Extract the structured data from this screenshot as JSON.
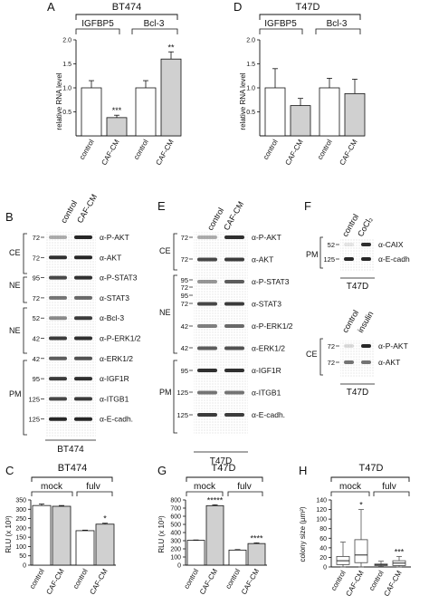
{
  "colors": {
    "gray_bar": "#d0d0d0",
    "white_bar": "#ffffff",
    "blot_band": "#1a1a1a",
    "blot_bg": "#e6e6e6",
    "axis": "#111111"
  },
  "panels": {
    "A": {
      "letter": "A",
      "cell_line": "BT474",
      "group_labels": [
        "IGFBP5",
        "Bcl-3"
      ],
      "ylabel": "relative RNA level",
      "xticks": [
        "control",
        "CAF-CM",
        "control",
        "CAF-CM"
      ],
      "annotations": [
        "***",
        "**"
      ]
    },
    "D": {
      "letter": "D",
      "cell_line": "T47D",
      "group_labels": [
        "IGFBP5",
        "Bcl-3"
      ],
      "ylabel": "relative RNA level",
      "xticks": [
        "control",
        "CAF-CM",
        "control",
        "CAF-CM"
      ]
    },
    "B": {
      "letter": "B",
      "cell_line": "BT474",
      "lane_labels": [
        "control",
        "CAF-CM"
      ],
      "fractions": [
        "CE",
        "NE",
        "NE",
        "PM"
      ],
      "mw": [
        "72",
        "72",
        "95",
        "72",
        "52",
        "42",
        "42",
        "95",
        "125",
        "125"
      ],
      "antibodies": [
        "α-P-AKT",
        "α-AKT",
        "α-P-STAT3",
        "α-STAT3",
        "α-Bcl-3",
        "α-P-ERK1/2",
        "α-ERK1/2",
        "α-IGF1R",
        "α-ITGB1",
        "α-E-cadh."
      ]
    },
    "E": {
      "letter": "E",
      "cell_line": "T47D",
      "lane_labels": [
        "control",
        "CAF-CM"
      ],
      "fractions": [
        "CE",
        "NE",
        "PM"
      ],
      "mw": [
        "72",
        "72",
        "95",
        "72",
        "95",
        "72",
        "42",
        "42",
        "95",
        "125",
        "125"
      ],
      "antibodies": [
        "α-P-AKT",
        "α-AKT",
        "α-P-STAT3",
        "α-STAT3",
        "α-P-ERK1/2",
        "α-ERK1/2",
        "α-IGF1R",
        "α-ITGB1",
        "α-E-cadh."
      ]
    },
    "F": {
      "letter": "F",
      "cell_line_top": "T47D",
      "cell_line_bottom": "T47D",
      "top_lanes": [
        "control",
        "CoCl₂"
      ],
      "bottom_lanes": [
        "control",
        "insulin"
      ],
      "top_fraction": "PM",
      "bottom_fraction": "CE",
      "top_mw": [
        "52",
        "125"
      ],
      "bottom_mw": [
        "72",
        "72"
      ],
      "top_antibodies": [
        "α-CAIX",
        "α-E-cadh"
      ],
      "bottom_antibodies": [
        "α-P-AKT",
        "α-AKT"
      ]
    },
    "C": {
      "letter": "C",
      "cell_line": "BT474",
      "group_labels": [
        "mock",
        "fulv"
      ],
      "ylabel": "RLU (x 10³)",
      "xticks": [
        "control",
        "CAF-CM",
        "control",
        "CAF-CM"
      ],
      "annotations": [
        "*"
      ]
    },
    "G": {
      "letter": "G",
      "cell_line": "T47D",
      "group_labels": [
        "mock",
        "fulv"
      ],
      "ylabel": "RLU (x 10³)",
      "xticks": [
        "control",
        "CAF-CM",
        "control",
        "CAF-CM"
      ],
      "annotations": [
        "*****",
        "****"
      ]
    },
    "H": {
      "letter": "H",
      "cell_line": "T47D",
      "group_labels": [
        "mock",
        "fulv"
      ],
      "ylabel": "colony size (µm²)",
      "xticks": [
        "control",
        "CAF-CM",
        "control",
        "CAF-CM"
      ],
      "annotations": [
        "*",
        "***"
      ]
    }
  },
  "chart_data": [
    {
      "panel": "A",
      "type": "bar",
      "categories": [
        "control",
        "CAF-CM",
        "control",
        "CAF-CM"
      ],
      "values": [
        1.0,
        0.38,
        1.0,
        1.6
      ],
      "errors": [
        0.15,
        0.05,
        0.15,
        0.15
      ],
      "colors": [
        "white",
        "gray",
        "white",
        "gray"
      ],
      "ylabel": "relative RNA level",
      "ylim": [
        0,
        2
      ],
      "yticks": [
        "0.5",
        "1.0",
        "1.5",
        "2.0"
      ]
    },
    {
      "panel": "D",
      "type": "bar",
      "categories": [
        "control",
        "CAF-CM",
        "control",
        "CAF-CM"
      ],
      "values": [
        1.0,
        0.63,
        1.0,
        0.88
      ],
      "errors": [
        0.4,
        0.15,
        0.2,
        0.3
      ],
      "colors": [
        "white",
        "gray",
        "white",
        "gray"
      ],
      "ylabel": "relative RNA level",
      "ylim": [
        0,
        2
      ],
      "yticks": [
        "0.5",
        "1.0",
        "1.5",
        "2.0"
      ]
    },
    {
      "panel": "C",
      "type": "bar",
      "categories": [
        "control",
        "CAF-CM",
        "control",
        "CAF-CM"
      ],
      "values": [
        320,
        316,
        185,
        220
      ],
      "errors": [
        8,
        4,
        3,
        5
      ],
      "colors": [
        "white",
        "gray",
        "white",
        "gray"
      ],
      "ylabel": "RLU (x 10³)",
      "ylim": [
        0,
        350
      ],
      "yticks": [
        "0",
        "50",
        "100",
        "150",
        "200",
        "250",
        "300",
        "350"
      ]
    },
    {
      "panel": "G",
      "type": "bar",
      "categories": [
        "control",
        "CAF-CM",
        "control",
        "CAF-CM"
      ],
      "values": [
        305,
        730,
        185,
        265
      ],
      "errors": [
        4,
        10,
        6,
        8
      ],
      "colors": [
        "white",
        "gray",
        "white",
        "gray"
      ],
      "ylabel": "RLU (x 10³)",
      "ylim": [
        0,
        800
      ],
      "yticks": [
        "0",
        "100",
        "200",
        "300",
        "400",
        "500",
        "600",
        "700",
        "800"
      ]
    },
    {
      "panel": "H",
      "type": "box",
      "categories": [
        "control",
        "CAF-CM",
        "control",
        "CAF-CM"
      ],
      "boxes": [
        {
          "min": 0,
          "q1": 5,
          "median": 13,
          "q3": 22,
          "max": 52
        },
        {
          "min": 0,
          "q1": 9,
          "median": 25,
          "q3": 57,
          "max": 120
        },
        {
          "min": 1,
          "q1": 3,
          "median": 5,
          "q3": 6,
          "max": 12
        },
        {
          "min": 0,
          "q1": 3,
          "median": 8,
          "q3": 13,
          "max": 22
        }
      ],
      "ylabel": "colony size (µm²)",
      "ylim": [
        0,
        140
      ],
      "yticks": [
        "0",
        "20",
        "40",
        "60",
        "80",
        "100",
        "120",
        "140"
      ]
    }
  ]
}
